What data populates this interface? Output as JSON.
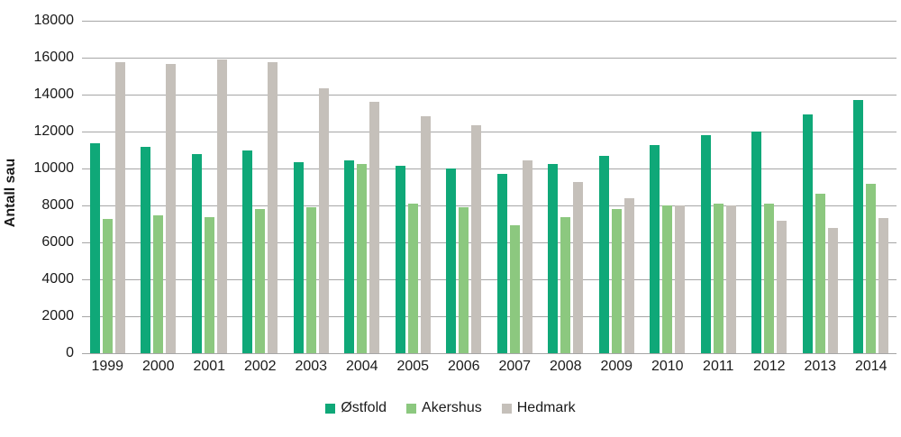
{
  "chart_data": {
    "type": "bar",
    "title": "",
    "xlabel": "",
    "ylabel": "Antall sau",
    "ylim": [
      0,
      18000
    ],
    "ytick_step": 2000,
    "grid": true,
    "legend_position": "bottom",
    "categories": [
      "1999",
      "2000",
      "2001",
      "2002",
      "2003",
      "2004",
      "2005",
      "2006",
      "2007",
      "2008",
      "2009",
      "2010",
      "2011",
      "2012",
      "2013",
      "2014"
    ],
    "series": [
      {
        "name": "Østfold",
        "color": "#0fa878",
        "values": [
          11350,
          11150,
          10800,
          11000,
          10350,
          10450,
          10150,
          10000,
          9700,
          10250,
          10700,
          11250,
          11800,
          12000,
          12950,
          13700
        ]
      },
      {
        "name": "Akershus",
        "color": "#8cc87f",
        "values": [
          7250,
          7450,
          7350,
          7800,
          7900,
          10250,
          8100,
          7900,
          6950,
          7350,
          7800,
          8000,
          8100,
          8100,
          8650,
          9150
        ]
      },
      {
        "name": "Hedmark",
        "color": "#c5c0ba",
        "values": [
          15750,
          15650,
          15900,
          15750,
          14350,
          13600,
          12850,
          12350,
          10450,
          9250,
          8400,
          8000,
          8000,
          7150,
          6800,
          7300
        ]
      }
    ],
    "colors": {
      "gridline": "#a6a6a6",
      "text": "#1a1a1a"
    }
  }
}
